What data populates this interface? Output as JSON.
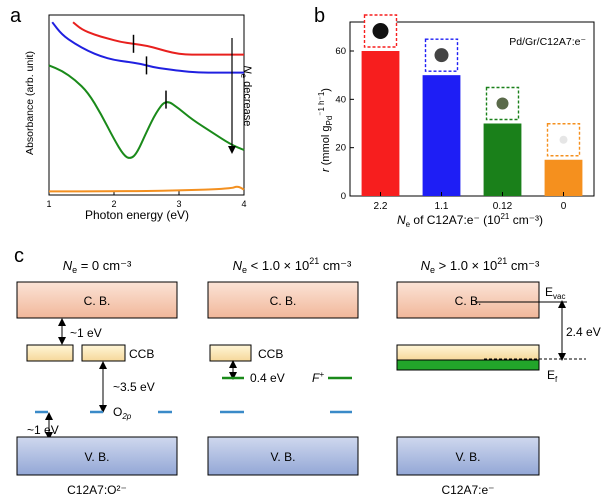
{
  "panel_a": {
    "letter": "a",
    "ylabel": "Absorbance (arb. unit)",
    "xlabel": "Photon energy (eV)",
    "xticks": [
      "1",
      "2",
      "3",
      "4"
    ],
    "arrow_label_symbol": "N",
    "arrow_label_sub": "e",
    "arrow_label_rest": " decrease"
  },
  "panel_b": {
    "letter": "b",
    "ylabel_r": "r",
    "ylabel_units_a": " (mmol g",
    "ylabel_units_sub": "Pd",
    "ylabel_units_b": "⁻1 h",
    "ylabel_units_c": "⁻1",
    "ylabel_units_d": ")",
    "xlabel_N": "N",
    "xlabel_sub": "e",
    "xlabel_rest": " of C12A7:e⁻ (10",
    "xlabel_exp": "21",
    "xlabel_tail": " cm⁻³)",
    "annotation": "Pd/Gr/C12A7:e⁻",
    "yticks": [
      "0",
      "20",
      "40",
      "60"
    ]
  },
  "chart_data": [
    {
      "type": "line",
      "title": "",
      "xlabel": "Photon energy (eV)",
      "ylabel": "Absorbance (arb. unit)",
      "xlim": [
        1,
        4
      ],
      "series": [
        {
          "color": "#e8201e",
          "x": [
            1.37,
            1.5,
            1.7,
            1.9,
            2.1,
            2.3,
            2.5,
            2.7,
            2.9,
            3.1,
            3.3,
            3.6,
            3.9,
            4.0
          ],
          "y": [
            0.96,
            0.92,
            0.89,
            0.87,
            0.85,
            0.84,
            0.83,
            0.81,
            0.79,
            0.78,
            0.78,
            0.78,
            0.78,
            0.78
          ]
        },
        {
          "color": "#2020e0",
          "x": [
            1.05,
            1.2,
            1.4,
            1.6,
            1.8,
            2.0,
            2.2,
            2.4,
            2.6,
            2.8,
            3.0,
            3.3,
            3.6,
            4.0
          ],
          "y": [
            0.96,
            0.89,
            0.84,
            0.8,
            0.77,
            0.75,
            0.74,
            0.73,
            0.71,
            0.7,
            0.69,
            0.68,
            0.68,
            0.68
          ]
        },
        {
          "color": "#1a8a1a",
          "x": [
            1.0,
            1.2,
            1.4,
            1.6,
            1.8,
            2.0,
            2.15,
            2.25,
            2.35,
            2.5,
            2.65,
            2.8,
            3.0,
            3.2,
            3.5,
            3.8,
            4.0
          ],
          "y": [
            0.72,
            0.69,
            0.64,
            0.57,
            0.45,
            0.31,
            0.22,
            0.2,
            0.23,
            0.35,
            0.46,
            0.53,
            0.48,
            0.42,
            0.35,
            0.28,
            0.25
          ]
        },
        {
          "color": "#f39020",
          "x": [
            1.0,
            2.0,
            3.0,
            3.8,
            3.9,
            4.0
          ],
          "y": [
            0.02,
            0.02,
            0.025,
            0.035,
            0.05,
            0.03
          ]
        }
      ],
      "markers_x": [
        2.3,
        2.5,
        2.8
      ]
    },
    {
      "type": "bar",
      "title": "",
      "xlabel": "Ne of C12A7:e⁻ (10²¹ cm⁻³)",
      "ylabel": "r (mmol gPd⁻¹ h⁻¹)",
      "ylim": [
        0,
        72
      ],
      "categories": [
        "2.2",
        "1.1",
        "0.12",
        "0"
      ],
      "values": [
        60,
        50,
        30,
        15
      ],
      "colors": [
        "#f71e1e",
        "#1e1ef5",
        "#1a801a",
        "#f5901e"
      ]
    }
  ],
  "panel_c": {
    "letter": "c",
    "col1": {
      "title_N": "N",
      "title_sub": "e",
      "title_rest": " = 0 cm⁻³",
      "cb": "C. B.",
      "vb": "V. B.",
      "ccb": "CCB",
      "gap1": "~1 eV",
      "gap2": "~3.5 eV",
      "gap3": "~1 eV",
      "o2p": "O",
      "o2p_sub": "2p",
      "footer": "C12A7:O²⁻"
    },
    "col2": {
      "title_N": "N",
      "title_sub": "e",
      "title_rest": " < 1.0 × 10",
      "title_exp": "21",
      "title_tail": " cm⁻³",
      "cb": "C. B.",
      "vb": "V. B.",
      "ccb": "CCB",
      "gap": "0.4 eV",
      "fplus": "F",
      "fplus_sup": "+"
    },
    "col3": {
      "title_N": "N",
      "title_sub": "e",
      "title_rest": " > 1.0 × 10",
      "title_exp": "21",
      "title_tail": " cm⁻³",
      "cb": "C. B.",
      "vb": "V. B.",
      "evac": "E",
      "evac_sub": "vac",
      "ef": "E",
      "ef_sub": "f",
      "gap": "2.4 eV",
      "footer": "C12A7:e⁻"
    }
  }
}
